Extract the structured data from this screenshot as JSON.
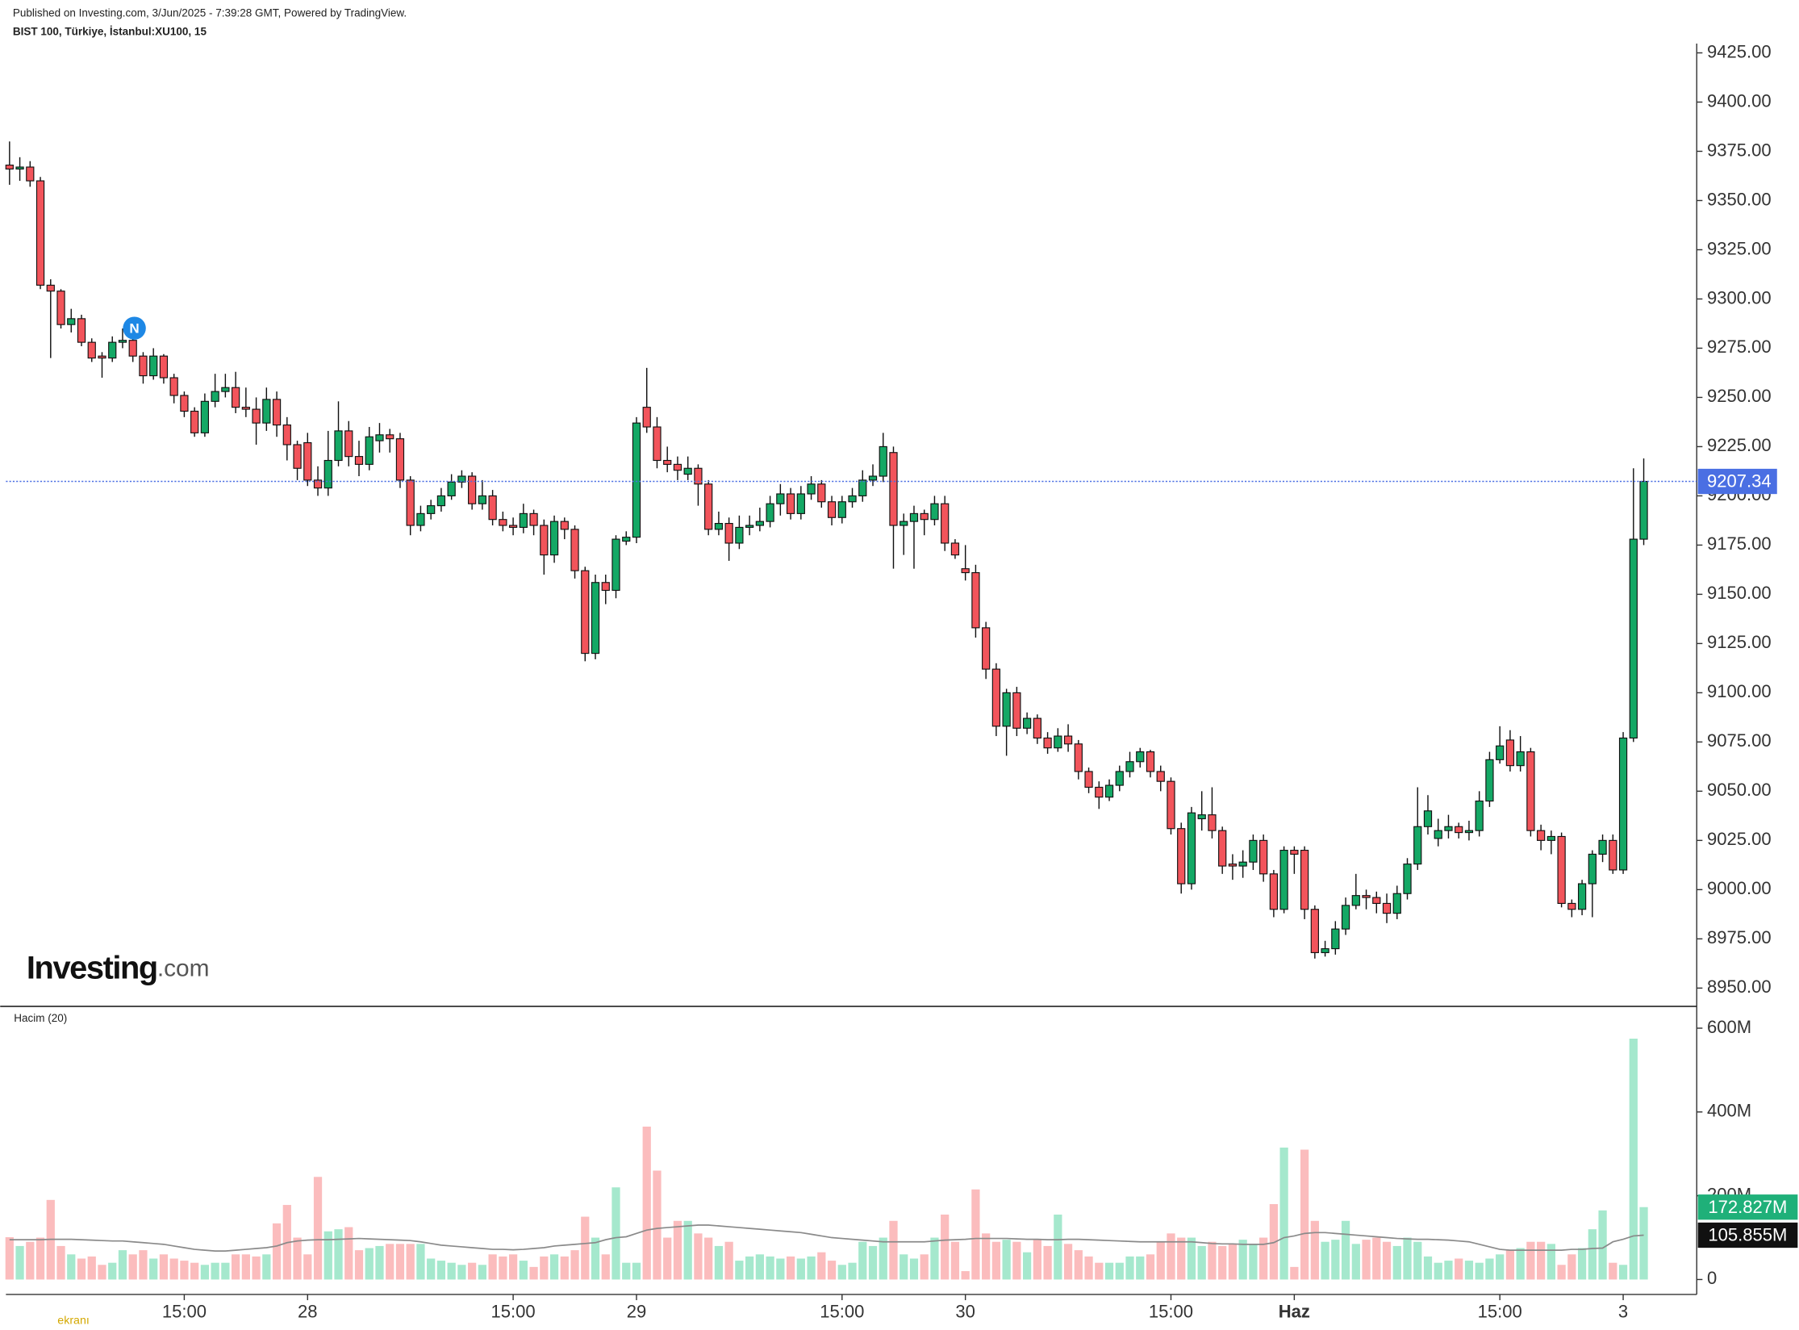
{
  "header": {
    "published": "Published on Investing.com, 3/Jun/2025 - 7:39:28 GMT, Powered by TradingView.",
    "symbol": "BIST 100, Türkiye, İstanbul:XU100, 15"
  },
  "logo": {
    "brand": "Investing",
    "suffix": ".com"
  },
  "watermark": "ekranı",
  "chart_data": {
    "type": "candlestick",
    "annotations": [
      "N"
    ],
    "categories": [
      null,
      null,
      null,
      null,
      null,
      null,
      null,
      null,
      null,
      null,
      null,
      null,
      null,
      null,
      null,
      null,
      null,
      "15:00",
      null,
      null,
      null,
      null,
      null,
      null,
      null,
      null,
      null,
      null,
      null,
      "28",
      null,
      null,
      null,
      null,
      null,
      null,
      null,
      null,
      null,
      null,
      null,
      null,
      null,
      null,
      null,
      null,
      null,
      null,
      null,
      "15:00",
      null,
      null,
      null,
      null,
      null,
      null,
      null,
      null,
      null,
      null,
      null,
      "29",
      null,
      null,
      null,
      null,
      null,
      null,
      null,
      null,
      null,
      null,
      null,
      null,
      null,
      null,
      null,
      null,
      null,
      null,
      null,
      "15:00",
      null,
      null,
      null,
      null,
      null,
      null,
      null,
      null,
      null,
      null,
      null,
      "30",
      null,
      null,
      null,
      null,
      null,
      null,
      null,
      null,
      null,
      null,
      null,
      null,
      null,
      null,
      null,
      null,
      null,
      null,
      null,
      "15:00",
      null,
      null,
      null,
      null,
      null,
      null,
      null,
      null,
      null,
      null,
      null,
      "Haz",
      null,
      null,
      null,
      null,
      null,
      null,
      null,
      null,
      null,
      null,
      null,
      null,
      null,
      null,
      null,
      null,
      null,
      null,
      null,
      "15:00",
      null,
      null,
      null,
      null,
      null,
      null,
      null,
      null,
      null,
      null,
      null,
      "3",
      null,
      null
    ],
    "ohlc": [
      [
        9368,
        9380,
        9358,
        9366
      ],
      [
        9366,
        9372,
        9360,
        9367
      ],
      [
        9367,
        9370,
        9357,
        9360
      ],
      [
        9360,
        9362,
        9305,
        9307
      ],
      [
        9307,
        9310,
        9270,
        9304
      ],
      [
        9304,
        9305,
        9285,
        9287
      ],
      [
        9287,
        9295,
        9283,
        9290
      ],
      [
        9290,
        9292,
        9276,
        9278
      ],
      [
        9278,
        9280,
        9268,
        9270
      ],
      [
        9271,
        9273,
        9260,
        9270
      ],
      [
        9270,
        9281,
        9268,
        9278
      ],
      [
        9278,
        9285,
        9275,
        9279
      ],
      [
        9279,
        9280,
        9268,
        9271
      ],
      [
        9271,
        9273,
        9257,
        9261
      ],
      [
        9261,
        9275,
        9259,
        9271
      ],
      [
        9271,
        9272,
        9257,
        9260
      ],
      [
        9260,
        9262,
        9247,
        9251
      ],
      [
        9251,
        9253,
        9240,
        9243
      ],
      [
        9243,
        9245,
        9230,
        9232
      ],
      [
        9232,
        9252,
        9230,
        9248
      ],
      [
        9248,
        9262,
        9245,
        9253
      ],
      [
        9253,
        9262,
        9250,
        9255
      ],
      [
        9255,
        9263,
        9242,
        9245
      ],
      [
        9245,
        9255,
        9240,
        9244
      ],
      [
        9244,
        9250,
        9226,
        9237
      ],
      [
        9237,
        9255,
        9233,
        9249
      ],
      [
        9249,
        9253,
        9230,
        9236
      ],
      [
        9236,
        9240,
        9218,
        9226
      ],
      [
        9226,
        9228,
        9208,
        9214
      ],
      [
        9227,
        9232,
        9205,
        9208
      ],
      [
        9208,
        9215,
        9200,
        9204
      ],
      [
        9204,
        9233,
        9200,
        9218
      ],
      [
        9218,
        9248,
        9215,
        9233
      ],
      [
        9233,
        9238,
        9215,
        9220
      ],
      [
        9220,
        9228,
        9210,
        9216
      ],
      [
        9216,
        9235,
        9213,
        9230
      ],
      [
        9228,
        9237,
        9222,
        9231
      ],
      [
        9231,
        9234,
        9222,
        9229
      ],
      [
        9229,
        9232,
        9204,
        9208
      ],
      [
        9208,
        9210,
        9180,
        9185
      ],
      [
        9185,
        9195,
        9182,
        9191
      ],
      [
        9191,
        9198,
        9188,
        9195
      ],
      [
        9195,
        9204,
        9192,
        9200
      ],
      [
        9200,
        9211,
        9198,
        9207
      ],
      [
        9207,
        9213,
        9204,
        9210
      ],
      [
        9210,
        9212,
        9193,
        9196
      ],
      [
        9196,
        9208,
        9193,
        9200
      ],
      [
        9200,
        9203,
        9185,
        9188
      ],
      [
        9188,
        9192,
        9182,
        9185
      ],
      [
        9185,
        9189,
        9180,
        9184
      ],
      [
        9184,
        9196,
        9181,
        9191
      ],
      [
        9191,
        9193,
        9180,
        9185
      ],
      [
        9185,
        9188,
        9160,
        9170
      ],
      [
        9170,
        9190,
        9166,
        9187
      ],
      [
        9187,
        9189,
        9178,
        9183
      ],
      [
        9183,
        9185,
        9158,
        9162
      ],
      [
        9162,
        9164,
        9116,
        9120
      ],
      [
        9120,
        9160,
        9117,
        9156
      ],
      [
        9156,
        9160,
        9145,
        9152
      ],
      [
        9152,
        9180,
        9148,
        9178
      ],
      [
        9177,
        9182,
        9175,
        9179
      ],
      [
        9179,
        9240,
        9176,
        9237
      ],
      [
        9245,
        9265,
        9232,
        9235
      ],
      [
        9235,
        9240,
        9214,
        9218
      ],
      [
        9218,
        9225,
        9212,
        9216
      ],
      [
        9216,
        9220,
        9208,
        9213
      ],
      [
        9211,
        9220,
        9208,
        9214
      ],
      [
        9214,
        9216,
        9195,
        9206
      ],
      [
        9206,
        9208,
        9180,
        9183
      ],
      [
        9183,
        9192,
        9180,
        9186
      ],
      [
        9186,
        9189,
        9167,
        9176
      ],
      [
        9176,
        9190,
        9173,
        9184
      ],
      [
        9184,
        9190,
        9180,
        9185
      ],
      [
        9185,
        9194,
        9182,
        9187
      ],
      [
        9187,
        9200,
        9184,
        9196
      ],
      [
        9196,
        9206,
        9190,
        9201
      ],
      [
        9201,
        9204,
        9188,
        9191
      ],
      [
        9191,
        9205,
        9188,
        9201
      ],
      [
        9201,
        9210,
        9198,
        9206
      ],
      [
        9206,
        9208,
        9194,
        9197
      ],
      [
        9197,
        9200,
        9185,
        9189
      ],
      [
        9189,
        9200,
        9186,
        9197
      ],
      [
        9197,
        9204,
        9194,
        9200
      ],
      [
        9200,
        9213,
        9197,
        9208
      ],
      [
        9208,
        9216,
        9205,
        9210
      ],
      [
        9210,
        9232,
        9207,
        9225
      ],
      [
        9222,
        9225,
        9163,
        9185
      ],
      [
        9185,
        9191,
        9170,
        9187
      ],
      [
        9187,
        9195,
        9163,
        9191
      ],
      [
        9191,
        9193,
        9180,
        9188
      ],
      [
        9188,
        9200,
        9185,
        9196
      ],
      [
        9196,
        9200,
        9172,
        9176
      ],
      [
        9176,
        9178,
        9168,
        9170
      ],
      [
        9163,
        9175,
        9157,
        9161
      ],
      [
        9161,
        9165,
        9128,
        9133
      ],
      [
        9133,
        9136,
        9107,
        9112
      ],
      [
        9112,
        9115,
        9078,
        9083
      ],
      [
        9083,
        9102,
        9068,
        9100
      ],
      [
        9100,
        9103,
        9078,
        9082
      ],
      [
        9082,
        9090,
        9079,
        9087
      ],
      [
        9087,
        9089,
        9074,
        9077
      ],
      [
        9077,
        9080,
        9069,
        9072
      ],
      [
        9072,
        9082,
        9070,
        9078
      ],
      [
        9078,
        9084,
        9070,
        9074
      ],
      [
        9074,
        9076,
        9056,
        9060
      ],
      [
        9060,
        9062,
        9049,
        9052
      ],
      [
        9052,
        9055,
        9041,
        9047
      ],
      [
        9047,
        9056,
        9045,
        9053
      ],
      [
        9053,
        9063,
        9050,
        9060
      ],
      [
        9060,
        9070,
        9057,
        9065
      ],
      [
        9065,
        9072,
        9062,
        9070
      ],
      [
        9070,
        9071,
        9057,
        9060
      ],
      [
        9060,
        9063,
        9050,
        9055
      ],
      [
        9055,
        9057,
        9028,
        9031
      ],
      [
        9031,
        9034,
        8998,
        9003
      ],
      [
        9003,
        9042,
        9000,
        9039
      ],
      [
        9036,
        9050,
        9030,
        9038
      ],
      [
        9038,
        9052,
        9026,
        9030
      ],
      [
        9030,
        9032,
        9008,
        9012
      ],
      [
        9013,
        9018,
        9005,
        9012
      ],
      [
        9012,
        9020,
        9006,
        9014
      ],
      [
        9014,
        9028,
        9010,
        9025
      ],
      [
        9025,
        9028,
        9004,
        9008
      ],
      [
        9008,
        9010,
        8986,
        8990
      ],
      [
        8990,
        9022,
        8988,
        9020
      ],
      [
        9020,
        9022,
        9008,
        9018
      ],
      [
        9020,
        9022,
        8985,
        8990
      ],
      [
        8990,
        8992,
        8965,
        8968
      ],
      [
        8968,
        8974,
        8966,
        8970
      ],
      [
        8970,
        8984,
        8967,
        8980
      ],
      [
        8980,
        8996,
        8977,
        8992
      ],
      [
        8992,
        9008,
        8990,
        8997
      ],
      [
        8997,
        9000,
        8990,
        8996
      ],
      [
        8996,
        8999,
        8988,
        8993
      ],
      [
        8993,
        8998,
        8983,
        8988
      ],
      [
        8988,
        9002,
        8985,
        8998
      ],
      [
        8998,
        9016,
        8995,
        9013
      ],
      [
        9013,
        9052,
        9010,
        9032
      ],
      [
        9032,
        9048,
        9028,
        9040
      ],
      [
        9026,
        9036,
        9022,
        9030
      ],
      [
        9030,
        9038,
        9026,
        9032
      ],
      [
        9032,
        9034,
        9026,
        9029
      ],
      [
        9029,
        9035,
        9025,
        9030
      ],
      [
        9030,
        9050,
        9027,
        9045
      ],
      [
        9045,
        9070,
        9042,
        9066
      ],
      [
        9066,
        9083,
        9064,
        9073
      ],
      [
        9076,
        9081,
        9060,
        9063
      ],
      [
        9063,
        9078,
        9060,
        9070
      ],
      [
        9070,
        9072,
        9027,
        9030
      ],
      [
        9030,
        9033,
        9020,
        9025
      ],
      [
        9025,
        9030,
        9018,
        9027
      ],
      [
        9027,
        9029,
        8991,
        8993
      ],
      [
        8993,
        8995,
        8986,
        8990
      ],
      [
        8990,
        9005,
        8987,
        9003
      ],
      [
        9003,
        9020,
        8986,
        9018
      ],
      [
        9018,
        9028,
        9014,
        9025
      ],
      [
        9025,
        9028,
        9008,
        9010
      ],
      [
        9010,
        9080,
        9008,
        9077
      ],
      [
        9077,
        9214,
        9075,
        9178
      ],
      [
        9178,
        9219,
        9175,
        9207.34
      ]
    ],
    "up_color": "#14a865",
    "down_color": "#f2545b",
    "last_price_color": "#4a6fe3",
    "ylim": [
      8940.7,
      9429.7
    ],
    "yticks": [
      {
        "value": 8950,
        "label": "8950.00"
      },
      {
        "value": 8975,
        "label": "8975.00"
      },
      {
        "value": 9000,
        "label": "9000.00"
      },
      {
        "value": 9025,
        "label": "9025.00"
      },
      {
        "value": 9050,
        "label": "9050.00"
      },
      {
        "value": 9075,
        "label": "9075.00"
      },
      {
        "value": 9100,
        "label": "9100.00"
      },
      {
        "value": 9125,
        "label": "9125.00"
      },
      {
        "value": 9150,
        "label": "9150.00"
      },
      {
        "value": 9175,
        "label": "9175.00"
      },
      {
        "value": 9200,
        "label": "9200.00"
      },
      {
        "value": 9225,
        "label": "9225.00"
      },
      {
        "value": 9250,
        "label": "9250.00"
      },
      {
        "value": 9275,
        "label": "9275.00"
      },
      {
        "value": 9300,
        "label": "9300.00"
      },
      {
        "value": 9325,
        "label": "9325.00"
      },
      {
        "value": 9350,
        "label": "9350.00"
      },
      {
        "value": 9375,
        "label": "9375.00"
      },
      {
        "value": 9400,
        "label": "9400.00"
      },
      {
        "value": 9425,
        "label": "9425.00"
      }
    ],
    "grid": false,
    "volume": {
      "title": "Hacim (20)",
      "values": [
        101,
        80,
        90,
        100,
        190,
        80,
        60,
        50,
        55,
        35,
        40,
        70,
        60,
        70,
        50,
        60,
        50,
        45,
        40,
        35,
        40,
        40,
        60,
        60,
        55,
        60,
        134,
        178,
        100,
        60,
        245,
        115,
        120,
        125,
        70,
        75,
        80,
        85,
        85,
        85,
        85,
        50,
        45,
        40,
        35,
        40,
        35,
        60,
        55,
        60,
        45,
        30,
        55,
        60,
        55,
        70,
        150,
        100,
        60,
        220,
        40,
        40,
        365,
        260,
        100,
        140,
        140,
        110,
        100,
        80,
        90,
        45,
        55,
        60,
        55,
        50,
        55,
        50,
        55,
        65,
        45,
        35,
        40,
        90,
        80,
        100,
        140,
        60,
        50,
        60,
        100,
        155,
        90,
        20,
        215,
        110,
        90,
        95,
        90,
        65,
        95,
        80,
        155,
        85,
        70,
        55,
        40,
        40,
        40,
        55,
        55,
        60,
        90,
        110,
        100,
        100,
        80,
        90,
        80,
        85,
        95,
        85,
        100,
        180,
        315,
        30,
        310,
        140,
        90,
        95,
        140,
        85,
        95,
        100,
        90,
        80,
        100,
        90,
        55,
        40,
        45,
        50,
        45,
        40,
        50,
        60,
        70,
        75,
        90,
        90,
        85,
        35,
        60,
        75,
        120,
        165,
        40,
        35,
        575,
        172.827
      ],
      "ma": [
        95,
        95,
        95,
        95,
        96,
        96,
        96,
        95,
        94,
        93,
        92,
        92,
        90,
        88,
        86,
        84,
        80,
        76,
        72,
        70,
        68,
        68,
        70,
        72,
        74,
        76,
        80,
        88,
        92,
        94,
        95,
        95,
        96,
        97,
        98,
        97,
        96,
        95,
        94,
        93,
        90,
        86,
        82,
        80,
        78,
        76,
        74,
        72,
        72,
        71,
        72,
        74,
        76,
        80,
        82,
        84,
        86,
        88,
        95,
        100,
        102,
        110,
        118,
        122,
        124,
        126,
        128,
        130,
        130,
        128,
        126,
        124,
        122,
        120,
        118,
        116,
        114,
        112,
        108,
        104,
        100,
        98,
        96,
        94,
        92,
        90,
        90,
        90,
        90,
        90,
        92,
        94,
        95,
        96,
        98,
        98,
        98,
        98,
        97,
        96,
        96,
        95,
        95,
        96,
        96,
        95,
        94,
        93,
        92,
        91,
        90,
        90,
        90,
        90,
        90,
        90,
        88,
        86,
        85,
        85,
        84,
        84,
        84,
        88,
        100,
        104,
        110,
        112,
        112,
        110,
        108,
        106,
        104,
        102,
        100,
        98,
        97,
        96,
        96,
        95,
        94,
        92,
        90,
        84,
        78,
        72,
        70,
        70,
        70,
        70,
        70,
        70,
        72,
        72,
        74,
        75,
        90,
        96,
        104,
        105.855
      ],
      "up_color": "#a5e8cd",
      "down_color": "#fbbcbd",
      "ma_color": "#8a8a8a",
      "ylim": [
        -35.6,
        652
      ],
      "yticks": [
        0,
        {
          "value": 200,
          "label": "200M"
        },
        {
          "value": 400,
          "label": "400M"
        },
        {
          "value": 600,
          "label": "600M"
        }
      ],
      "value_label": "172.827M",
      "ma_label": "105.855M",
      "value_label_color": "#1fb079",
      "ma_label_color": "#111111"
    }
  }
}
